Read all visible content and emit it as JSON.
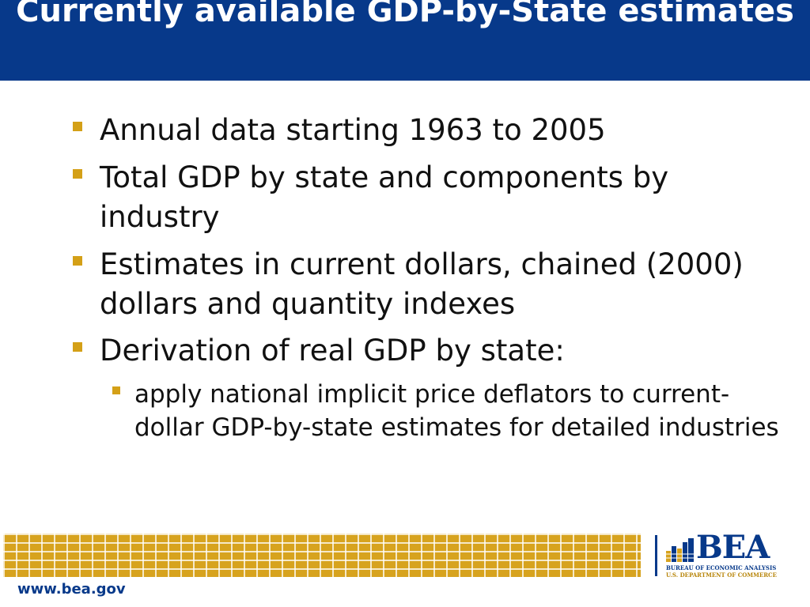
{
  "slide": {
    "title": "Currently available GDP-by-State estimates",
    "bullets": [
      {
        "text": "Annual data starting 1963 to 2005"
      },
      {
        "text": "Total GDP by state and components by industry"
      },
      {
        "text": "Estimates in current dollars, chained (2000) dollars and quantity indexes"
      },
      {
        "text": "Derivation of real GDP by state:"
      }
    ],
    "sub_bullets": [
      {
        "text": "apply national implicit price deflators to current-dollar GDP-by-state estimates for detailed industries"
      }
    ]
  },
  "footer": {
    "url": "www.bea.gov",
    "logo": {
      "name": "BEA",
      "line1": "BUREAU OF ECONOMIC ANALYSIS",
      "line2": "U.S. DEPARTMENT OF COMMERCE",
      "icon": "bar-chart-building-icon"
    }
  },
  "colors": {
    "title_bar": "#07398a",
    "bullet_marker": "#d4a017",
    "footer_grid": "#d7a31e",
    "logo_blue": "#07398a"
  }
}
